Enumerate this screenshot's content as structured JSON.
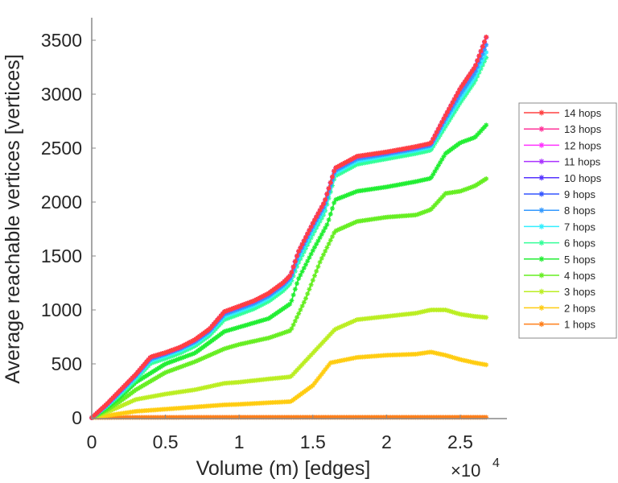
{
  "chart_data": {
    "type": "line",
    "title": "",
    "xlabel": "Volume (m) [edges]",
    "ylabel": "Average reachable vertices [vertices]",
    "x_multiplier_label": {
      "base": "×10",
      "exponent": "4"
    },
    "xlim": [
      0,
      2.75
    ],
    "ylim": [
      0,
      3650
    ],
    "x_ticks": [
      0,
      0.5,
      1,
      1.5,
      2,
      2.5
    ],
    "x_tick_labels": [
      "0",
      "0.5",
      "1",
      "1.5",
      "2",
      "2.5"
    ],
    "y_ticks": [
      0,
      500,
      1000,
      1500,
      2000,
      2500,
      3000,
      3500
    ],
    "y_tick_labels": [
      "0",
      "500",
      "1000",
      "1500",
      "2000",
      "2500",
      "3000",
      "3500"
    ],
    "grid": false,
    "legend_position": "outside-right",
    "marker": "asterisk",
    "series": [
      {
        "name": "14 hops",
        "color": "#ff4040",
        "x": [
          0,
          0.1,
          0.2,
          0.3,
          0.4,
          0.5,
          0.6,
          0.7,
          0.8,
          0.9,
          1.0,
          1.1,
          1.2,
          1.3,
          1.35,
          1.4,
          1.5,
          1.58,
          1.65,
          1.8,
          2.0,
          2.2,
          2.3,
          2.4,
          2.5,
          2.6,
          2.68
        ],
        "y": [
          0,
          125,
          265,
          405,
          565,
          605,
          655,
          725,
          825,
          985,
          1035,
          1085,
          1155,
          1255,
          1325,
          1535,
          1805,
          2005,
          2315,
          2425,
          2465,
          2515,
          2545,
          2805,
          3055,
          3255,
          3545
        ]
      },
      {
        "name": "13 hops",
        "color": "#ff3399",
        "x": [
          0,
          0.1,
          0.2,
          0.3,
          0.4,
          0.5,
          0.6,
          0.7,
          0.8,
          0.9,
          1.0,
          1.1,
          1.2,
          1.3,
          1.35,
          1.4,
          1.5,
          1.58,
          1.65,
          1.8,
          2.0,
          2.2,
          2.3,
          2.4,
          2.5,
          2.6,
          2.68
        ],
        "y": [
          0,
          124,
          264,
          404,
          564,
          604,
          654,
          724,
          824,
          984,
          1034,
          1084,
          1154,
          1254,
          1324,
          1534,
          1804,
          2004,
          2314,
          2424,
          2464,
          2514,
          2544,
          2804,
          3054,
          3254,
          3544
        ]
      },
      {
        "name": "12 hops",
        "color": "#ff33ff",
        "x": [
          0,
          0.1,
          0.2,
          0.3,
          0.4,
          0.5,
          0.6,
          0.7,
          0.8,
          0.9,
          1.0,
          1.1,
          1.2,
          1.3,
          1.35,
          1.4,
          1.5,
          1.58,
          1.65,
          1.8,
          2.0,
          2.2,
          2.3,
          2.4,
          2.5,
          2.6,
          2.68
        ],
        "y": [
          0,
          123,
          263,
          403,
          563,
          603,
          653,
          723,
          823,
          983,
          1033,
          1083,
          1153,
          1253,
          1323,
          1533,
          1803,
          2003,
          2313,
          2423,
          2463,
          2513,
          2543,
          2803,
          3053,
          3253,
          3543
        ]
      },
      {
        "name": "11 hops",
        "color": "#aa33ff",
        "x": [
          0,
          0.1,
          0.2,
          0.3,
          0.4,
          0.5,
          0.6,
          0.7,
          0.8,
          0.9,
          1.0,
          1.1,
          1.2,
          1.3,
          1.35,
          1.4,
          1.5,
          1.58,
          1.65,
          1.8,
          2.0,
          2.2,
          2.3,
          2.4,
          2.5,
          2.6,
          2.68
        ],
        "y": [
          0,
          122,
          262,
          402,
          562,
          602,
          652,
          722,
          822,
          982,
          1032,
          1082,
          1152,
          1252,
          1322,
          1532,
          1802,
          2002,
          2312,
          2422,
          2462,
          2512,
          2542,
          2802,
          3052,
          3252,
          3542
        ]
      },
      {
        "name": "10 hops",
        "color": "#5533ff",
        "x": [
          0,
          0.1,
          0.2,
          0.3,
          0.4,
          0.5,
          0.6,
          0.7,
          0.8,
          0.9,
          1.0,
          1.1,
          1.2,
          1.3,
          1.35,
          1.4,
          1.5,
          1.58,
          1.65,
          1.8,
          2.0,
          2.2,
          2.3,
          2.4,
          2.5,
          2.6,
          2.68
        ],
        "y": [
          0,
          121,
          261,
          401,
          561,
          601,
          651,
          721,
          821,
          981,
          1031,
          1081,
          1151,
          1251,
          1321,
          1531,
          1801,
          2001,
          2311,
          2421,
          2461,
          2511,
          2541,
          2801,
          3051,
          3251,
          3541
        ]
      },
      {
        "name": "9 hops",
        "color": "#3355ff",
        "x": [
          0,
          0.1,
          0.2,
          0.3,
          0.4,
          0.5,
          0.6,
          0.7,
          0.8,
          0.9,
          1.0,
          1.1,
          1.2,
          1.3,
          1.35,
          1.4,
          1.5,
          1.58,
          1.65,
          1.8,
          2.0,
          2.2,
          2.3,
          2.4,
          2.5,
          2.6,
          2.68
        ],
        "y": [
          0,
          120,
          260,
          400,
          560,
          600,
          650,
          720,
          820,
          980,
          1030,
          1080,
          1150,
          1250,
          1320,
          1530,
          1800,
          2000,
          2310,
          2420,
          2460,
          2510,
          2540,
          2800,
          3050,
          3250,
          3540
        ]
      },
      {
        "name": "8 hops",
        "color": "#3399ff",
        "x": [
          0,
          0.1,
          0.2,
          0.3,
          0.4,
          0.5,
          0.6,
          0.7,
          0.8,
          0.9,
          1.0,
          1.1,
          1.2,
          1.3,
          1.35,
          1.4,
          1.5,
          1.58,
          1.65,
          1.8,
          2.0,
          2.2,
          2.3,
          2.4,
          2.5,
          2.6,
          2.68
        ],
        "y": [
          0,
          115,
          250,
          390,
          545,
          590,
          640,
          705,
          805,
          960,
          1010,
          1060,
          1130,
          1230,
          1300,
          1500,
          1770,
          1970,
          2290,
          2400,
          2445,
          2495,
          2525,
          2770,
          3000,
          3200,
          3470
        ]
      },
      {
        "name": "7 hops",
        "color": "#33eeff",
        "x": [
          0,
          0.1,
          0.2,
          0.3,
          0.4,
          0.5,
          0.6,
          0.7,
          0.8,
          0.9,
          1.0,
          1.1,
          1.2,
          1.3,
          1.35,
          1.4,
          1.5,
          1.58,
          1.65,
          1.8,
          2.0,
          2.2,
          2.3,
          2.4,
          2.5,
          2.6,
          2.68
        ],
        "y": [
          0,
          110,
          240,
          375,
          530,
          575,
          625,
          690,
          790,
          940,
          990,
          1040,
          1110,
          1210,
          1280,
          1470,
          1740,
          1940,
          2270,
          2380,
          2430,
          2480,
          2510,
          2740,
          2960,
          3160,
          3400
        ]
      },
      {
        "name": "6 hops",
        "color": "#33ff99",
        "x": [
          0,
          0.1,
          0.2,
          0.3,
          0.4,
          0.5,
          0.6,
          0.7,
          0.8,
          0.9,
          1.0,
          1.1,
          1.2,
          1.3,
          1.35,
          1.4,
          1.5,
          1.58,
          1.65,
          1.8,
          2.0,
          2.2,
          2.3,
          2.4,
          2.5,
          2.6,
          2.68
        ],
        "y": [
          0,
          105,
          225,
          355,
          505,
          550,
          600,
          665,
          765,
          910,
          960,
          1010,
          1080,
          1180,
          1250,
          1430,
          1700,
          1900,
          2240,
          2350,
          2400,
          2450,
          2480,
          2700,
          2920,
          3120,
          3350
        ]
      },
      {
        "name": "5 hops",
        "color": "#22ee33",
        "x": [
          0,
          0.1,
          0.2,
          0.3,
          0.5,
          0.7,
          0.9,
          1.0,
          1.2,
          1.35,
          1.4,
          1.5,
          1.6,
          1.65,
          1.8,
          2.0,
          2.2,
          2.3,
          2.4,
          2.5,
          2.6,
          2.68
        ],
        "y": [
          0,
          90,
          200,
          330,
          500,
          600,
          800,
          840,
          920,
          1060,
          1280,
          1550,
          1800,
          2020,
          2100,
          2140,
          2190,
          2220,
          2450,
          2550,
          2600,
          2720
        ]
      },
      {
        "name": "4 hops",
        "color": "#66ee22",
        "x": [
          0,
          0.1,
          0.2,
          0.3,
          0.5,
          0.7,
          0.9,
          1.0,
          1.2,
          1.35,
          1.45,
          1.55,
          1.65,
          1.8,
          2.0,
          2.2,
          2.3,
          2.4,
          2.5,
          2.6,
          2.68
        ],
        "y": [
          0,
          70,
          160,
          260,
          420,
          520,
          640,
          680,
          740,
          810,
          1100,
          1450,
          1730,
          1820,
          1860,
          1880,
          1930,
          2080,
          2100,
          2150,
          2220
        ]
      },
      {
        "name": "3 hops",
        "color": "#bbee22",
        "x": [
          0,
          0.1,
          0.2,
          0.3,
          0.5,
          0.7,
          0.9,
          1.0,
          1.2,
          1.35,
          1.5,
          1.65,
          1.8,
          2.0,
          2.2,
          2.3,
          2.4,
          2.5,
          2.6,
          2.68
        ],
        "y": [
          0,
          50,
          110,
          170,
          220,
          260,
          320,
          330,
          360,
          380,
          600,
          820,
          910,
          940,
          970,
          1000,
          1000,
          960,
          940,
          930
        ]
      },
      {
        "name": "2 hops",
        "color": "#ffcc11",
        "x": [
          0,
          0.1,
          0.2,
          0.3,
          0.5,
          0.7,
          0.9,
          1.0,
          1.2,
          1.35,
          1.5,
          1.62,
          1.8,
          2.0,
          2.2,
          2.3,
          2.4,
          2.5,
          2.6,
          2.68
        ],
        "y": [
          0,
          20,
          40,
          60,
          80,
          100,
          120,
          125,
          140,
          150,
          300,
          510,
          560,
          580,
          590,
          610,
          580,
          540,
          510,
          490
        ]
      },
      {
        "name": "1 hops",
        "color": "#ff7f1a",
        "x": [
          0,
          0.5,
          1.0,
          1.5,
          2.0,
          2.5,
          2.68
        ],
        "y": [
          3,
          4,
          5,
          5,
          5,
          5,
          5
        ]
      }
    ]
  }
}
